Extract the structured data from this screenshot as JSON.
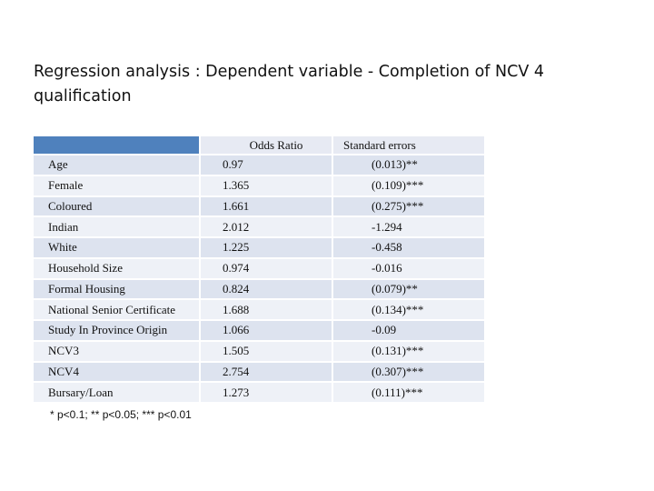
{
  "title": "Regression analysis : Dependent variable - Completion of NCV 4 qualification",
  "table": {
    "headers": [
      "",
      "Odds Ratio",
      "Standard errors"
    ],
    "rows": [
      {
        "variable": "Age",
        "odds_ratio": "0.97",
        "se": "(0.013)**"
      },
      {
        "variable": "Female",
        "odds_ratio": "1.365",
        "se": "(0.109)***"
      },
      {
        "variable": "Coloured",
        "odds_ratio": "1.661",
        "se": "(0.275)***"
      },
      {
        "variable": "Indian",
        "odds_ratio": "2.012",
        "se": "-1.294"
      },
      {
        "variable": "White",
        "odds_ratio": "1.225",
        "se": "-0.458"
      },
      {
        "variable": "Household Size",
        "odds_ratio": "0.974",
        "se": "-0.016"
      },
      {
        "variable": "Formal Housing",
        "odds_ratio": "0.824",
        "se": "(0.079)**"
      },
      {
        "variable": "National Senior Certificate",
        "odds_ratio": "1.688",
        "se": "(0.134)***"
      },
      {
        "variable": "Study In Province Origin",
        "odds_ratio": "1.066",
        "se": "-0.09"
      },
      {
        "variable": "NCV3",
        "odds_ratio": "1.505",
        "se": "(0.131)***"
      },
      {
        "variable": "NCV4",
        "odds_ratio": "2.754",
        "se": "(0.307)***"
      },
      {
        "variable": "Bursary/Loan",
        "odds_ratio": "1.273",
        "se": "(0.111)***"
      }
    ]
  },
  "footnote": "* p<0.1; ** p<0.05; *** p<0.01",
  "colors": {
    "header_fill": "#4f81bd",
    "row_odd": "#dde3ef",
    "row_even": "#eef1f7"
  }
}
